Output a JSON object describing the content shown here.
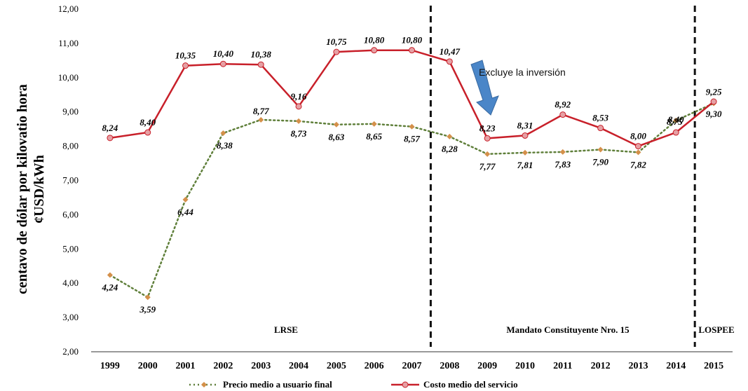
{
  "chart_data": {
    "type": "line",
    "title": "",
    "xlabel": "",
    "ylabel_line1": "centavo de dólar por kilovatio hora",
    "ylabel_line2": "¢USD/kWh",
    "ylim": [
      2,
      12
    ],
    "yticks": [
      "2,00",
      "3,00",
      "4,00",
      "5,00",
      "6,00",
      "7,00",
      "8,00",
      "9,00",
      "10,00",
      "11,00",
      "12,00"
    ],
    "grid": false,
    "legend_position": "bottom",
    "categories": [
      "1999",
      "2000",
      "2001",
      "2002",
      "2003",
      "2004",
      "2005",
      "2006",
      "2007",
      "2008",
      "2009",
      "2010",
      "2011",
      "2012",
      "2013",
      "2014",
      "2015"
    ],
    "series": [
      {
        "name": "Precio medio a usuario final",
        "color": "#d4904a",
        "line_color": "#5f7f3a",
        "style": "dotted",
        "marker": "diamond",
        "values": [
          4.24,
          3.59,
          6.44,
          8.38,
          8.77,
          8.73,
          8.63,
          8.65,
          8.57,
          8.28,
          7.77,
          7.81,
          7.83,
          7.9,
          7.82,
          8.75,
          9.25
        ],
        "labels": [
          "4,24",
          "3,59",
          "6,44",
          "8,38",
          "8,77",
          "8,73",
          "8,63",
          "8,65",
          "8,57",
          "8,28",
          "7,77",
          "7,81",
          "7,83",
          "7,90",
          "7,82",
          "8,75",
          "9,25"
        ]
      },
      {
        "name": "Costo medio del servicio",
        "color": "#c8202a",
        "marker_fill": "#e6a0a4",
        "style": "solid",
        "marker": "circle",
        "values": [
          8.24,
          8.4,
          10.35,
          10.4,
          10.38,
          9.16,
          10.75,
          10.8,
          10.8,
          10.47,
          8.23,
          8.31,
          8.92,
          8.53,
          8.0,
          8.4,
          9.3
        ],
        "labels": [
          "8,24",
          "8,40",
          "10,35",
          "10,40",
          "10,38",
          "9,16",
          "10,75",
          "10,80",
          "10,80",
          "10,47",
          "8,23",
          "8,31",
          "8,92",
          "8,53",
          "8,00",
          "8,40",
          "9,30"
        ]
      }
    ],
    "dividers": [
      {
        "between": [
          "2007",
          "2008"
        ],
        "style": "dashed"
      },
      {
        "between": [
          "2014",
          "2015"
        ],
        "style": "dashed"
      }
    ],
    "periods": [
      {
        "label": "LRSE"
      },
      {
        "label": "Mandato Constituyente Nro. 15"
      },
      {
        "label": "LOSPEE"
      }
    ],
    "annotation": {
      "text": "Excluye la inversión",
      "arrow_color": "#4a86c8"
    }
  }
}
